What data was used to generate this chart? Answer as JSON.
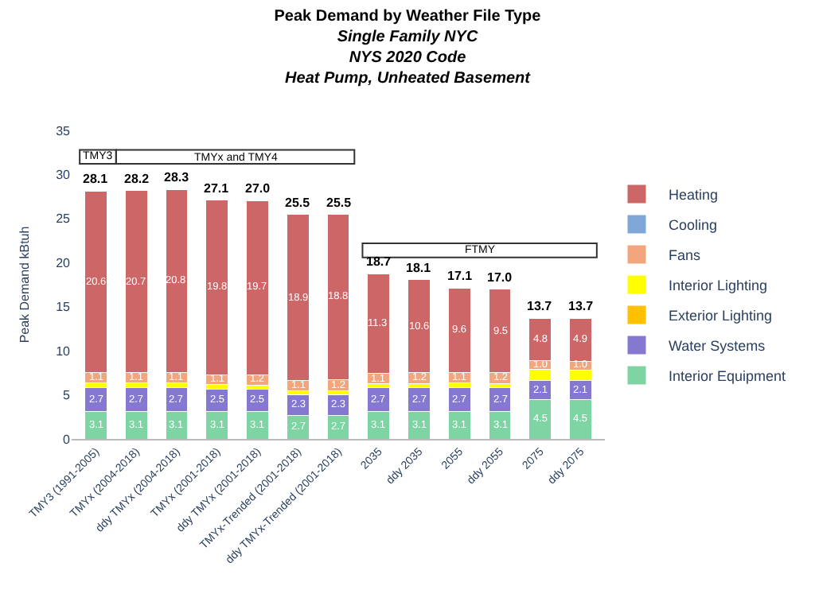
{
  "chart_data": {
    "type": "bar",
    "stacked": true,
    "title": "Peak Demand by Weather File Type",
    "subtitle": "Single Family NYC\nNYS 2020 Code\nHeat Pump, Unheated Basement",
    "ylabel": "Peak Demand kBtuh",
    "categories": [
      "TMY3 (1991-2005)",
      "TMYx (2004-2018)",
      "ddy TMYx (2004-2018)",
      "TMYx (2001-2018)",
      "ddy TMYx (2001-2018)",
      "TMYx-Trended (2001-2018)",
      "ddy TMYx-Trended (2001-2018)",
      "2035",
      "ddy 2035",
      "2055",
      "ddy 2055",
      "2075",
      "ddy 2075"
    ],
    "series": [
      {
        "name": "Interior Equipment",
        "color": "#7fd4a4",
        "values": [
          3.1,
          3.1,
          3.1,
          3.1,
          3.1,
          2.7,
          2.7,
          3.1,
          3.1,
          3.1,
          3.1,
          4.5,
          4.5
        ],
        "value_labels": [
          "3.1",
          "3.1",
          "3.1",
          "3.1",
          "3.1",
          "2.7",
          "2.7",
          "3.1",
          "3.1",
          "3.1",
          "3.1",
          "4.5",
          "4.5"
        ]
      },
      {
        "name": "Water Systems",
        "color": "#8478d0",
        "values": [
          2.7,
          2.7,
          2.7,
          2.5,
          2.5,
          2.3,
          2.3,
          2.7,
          2.7,
          2.7,
          2.7,
          2.1,
          2.1
        ],
        "value_labels": [
          "2.7",
          "2.7",
          "2.7",
          "2.5",
          "2.5",
          "2.3",
          "2.3",
          "2.7",
          "2.7",
          "2.7",
          "2.7",
          "2.1",
          "2.1"
        ]
      },
      {
        "name": "Exterior Lighting",
        "color": "#ffc000",
        "values": [
          null,
          null,
          null,
          null,
          null,
          null,
          null,
          null,
          null,
          null,
          null,
          null,
          null
        ]
      },
      {
        "name": "Interior Lighting",
        "color": "#ffff00",
        "values": [
          0.6,
          0.6,
          0.6,
          0.6,
          0.5,
          0.5,
          0.5,
          0.5,
          0.5,
          0.6,
          0.5,
          1.3,
          1.2
        ]
      },
      {
        "name": "Fans",
        "color": "#f2a67e",
        "values": [
          1.1,
          1.1,
          1.1,
          1.1,
          1.2,
          1.1,
          1.2,
          1.1,
          1.2,
          1.1,
          1.2,
          1.0,
          1.0
        ],
        "value_labels": [
          "1.1",
          "1.1",
          "1.1",
          "1.1",
          "1.2",
          "1.1",
          "1.2",
          "1.1",
          "1.2",
          "1.1",
          "1.2",
          "1.0",
          "1.0"
        ]
      },
      {
        "name": "Cooling",
        "color": "#7fa8d8",
        "values": [
          null,
          null,
          null,
          null,
          null,
          null,
          null,
          null,
          null,
          null,
          null,
          null,
          null
        ]
      },
      {
        "name": "Heating",
        "color": "#cd6666",
        "values": [
          20.6,
          20.7,
          20.8,
          19.8,
          19.7,
          18.9,
          18.8,
          11.3,
          10.6,
          9.6,
          9.5,
          4.8,
          4.9
        ],
        "value_labels": [
          "20.6",
          "20.7",
          "20.8",
          "19.8",
          "19.7",
          "18.9",
          "18.8",
          "11.3",
          "10.6",
          "9.6",
          "9.5",
          "4.8",
          "4.9"
        ]
      }
    ],
    "totals": [
      "28.1",
      "28.2",
      "28.3",
      "27.1",
      "27.0",
      "25.5",
      "25.5",
      "18.7",
      "18.1",
      "17.1",
      "17.0",
      "13.7",
      "13.7"
    ],
    "annotations": [
      "TMY3",
      "TMYx and TMY4",
      "FTMY"
    ],
    "ylim": [
      0,
      35
    ],
    "yticks": [
      0,
      5,
      10,
      15,
      20,
      25,
      30,
      35
    ],
    "legend": "right"
  }
}
